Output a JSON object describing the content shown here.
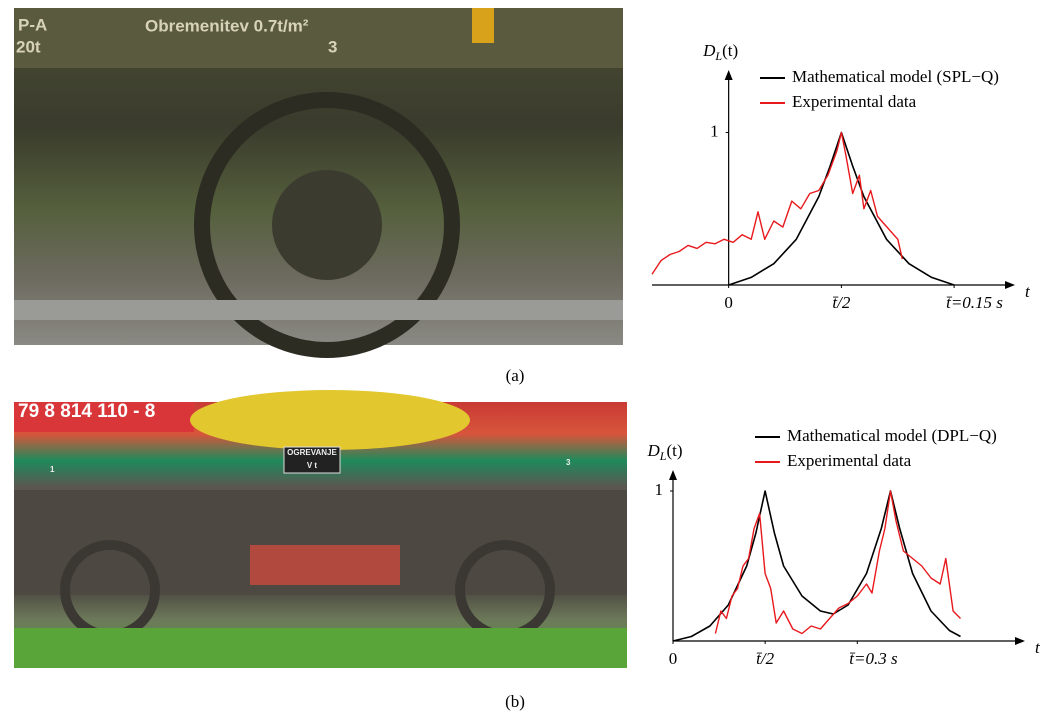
{
  "figure": {
    "captions": [
      "(a)",
      "(b)"
    ],
    "photo_texts": [
      [
        "P-A",
        "20t",
        "Obremenitev 0.7t/m²",
        "3"
      ],
      [
        "79 8 814 110 - 8",
        "OGREVANJE",
        "V t",
        "1",
        "3"
      ]
    ]
  },
  "chart_data": [
    {
      "type": "line",
      "ylabel": {
        "main": "D",
        "sub": "L",
        "tail": "(t)"
      },
      "xlabel": "t",
      "xlim": [
        -0.34,
        1.27
      ],
      "ylim": [
        0,
        1.41
      ],
      "xticks": [
        0,
        {
          "value": 0.5,
          "label": "t̄/2"
        },
        {
          "value": 1,
          "label": "t̄=0.15 s"
        }
      ],
      "yticks": [
        1
      ],
      "legend": "upper right",
      "series": [
        {
          "name": "Mathematical model (SPL−Q)",
          "color": "#000000",
          "x": [
            0,
            0.1,
            0.2,
            0.3,
            0.4,
            0.45,
            0.5,
            0.55,
            0.6,
            0.7,
            0.8,
            0.9,
            1
          ],
          "values": [
            0,
            0.05,
            0.14,
            0.3,
            0.58,
            0.78,
            1,
            0.78,
            0.58,
            0.3,
            0.14,
            0.05,
            0
          ]
        },
        {
          "name": "Experimental data",
          "color": "#e8191c",
          "x": [
            -0.34,
            -0.3,
            -0.26,
            -0.22,
            -0.18,
            -0.14,
            -0.1,
            -0.06,
            -0.02,
            0.02,
            0.06,
            0.1,
            0.13,
            0.16,
            0.2,
            0.24,
            0.28,
            0.32,
            0.36,
            0.4,
            0.44,
            0.48,
            0.5,
            0.52,
            0.55,
            0.58,
            0.6,
            0.63,
            0.66,
            0.69,
            0.72,
            0.75,
            0.77
          ],
          "values": [
            0.07,
            0.16,
            0.2,
            0.22,
            0.26,
            0.24,
            0.28,
            0.27,
            0.3,
            0.28,
            0.33,
            0.3,
            0.48,
            0.3,
            0.42,
            0.38,
            0.55,
            0.5,
            0.6,
            0.62,
            0.72,
            0.88,
            1,
            0.85,
            0.6,
            0.72,
            0.5,
            0.62,
            0.45,
            0.4,
            0.35,
            0.3,
            0.17
          ]
        }
      ]
    },
    {
      "type": "line",
      "ylabel": {
        "main": "D",
        "sub": "L",
        "tail": "(t)"
      },
      "xlabel": "t",
      "xlim": [
        0,
        1.91
      ],
      "ylim": [
        0,
        1.14
      ],
      "xticks": [
        0,
        {
          "value": 0.5,
          "label": "t̄/2"
        },
        {
          "value": 1,
          "label": "t̄=0.3 s"
        }
      ],
      "yticks": [
        1
      ],
      "legend": "upper right",
      "series": [
        {
          "name": "Mathematical model (DPL−Q)",
          "color": "#000000",
          "x": [
            0,
            0.1,
            0.2,
            0.3,
            0.4,
            0.45,
            0.5,
            0.55,
            0.6,
            0.7,
            0.8,
            0.87,
            0.95,
            1.05,
            1.13,
            1.18,
            1.23,
            1.3,
            1.4,
            1.5,
            1.56
          ],
          "values": [
            0,
            0.03,
            0.1,
            0.24,
            0.5,
            0.72,
            1,
            0.72,
            0.5,
            0.3,
            0.2,
            0.18,
            0.24,
            0.45,
            0.75,
            1,
            0.75,
            0.45,
            0.2,
            0.07,
            0.03
          ]
        },
        {
          "name": "Experimental data",
          "color": "#e8191c",
          "x": [
            0.23,
            0.26,
            0.29,
            0.32,
            0.35,
            0.38,
            0.41,
            0.44,
            0.47,
            0.5,
            0.53,
            0.56,
            0.6,
            0.65,
            0.7,
            0.75,
            0.8,
            0.85,
            0.9,
            0.95,
            1.0,
            1.05,
            1.08,
            1.12,
            1.15,
            1.18,
            1.21,
            1.25,
            1.3,
            1.35,
            1.4,
            1.45,
            1.48,
            1.52,
            1.56
          ],
          "values": [
            0.05,
            0.2,
            0.15,
            0.3,
            0.35,
            0.5,
            0.55,
            0.75,
            0.85,
            0.45,
            0.35,
            0.12,
            0.2,
            0.08,
            0.05,
            0.1,
            0.08,
            0.15,
            0.22,
            0.25,
            0.3,
            0.38,
            0.32,
            0.6,
            0.75,
            1,
            0.8,
            0.6,
            0.55,
            0.5,
            0.42,
            0.38,
            0.55,
            0.2,
            0.15
          ]
        }
      ]
    }
  ]
}
